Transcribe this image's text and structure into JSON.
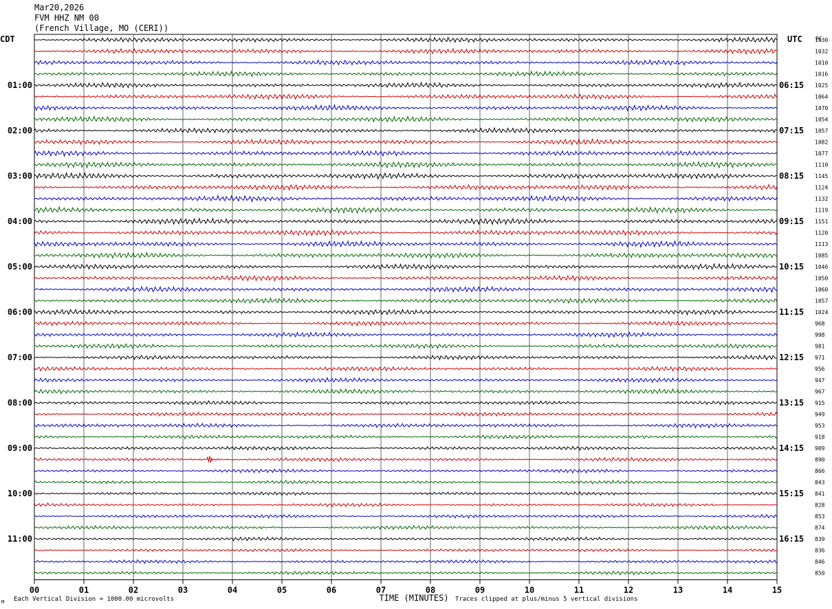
{
  "header": {
    "date": "Mar20,2026",
    "station": "FVM HHZ NM 00",
    "location": "(French Village, MO (CERI))"
  },
  "labels": {
    "left_tz": "CDT",
    "right_tz": "UTC",
    "pc_label": "PC"
  },
  "footer": {
    "scale": "Each Vertical Division = 1000.00 microvolts",
    "clip": "Traces clipped at plus/minus 5 vertical divisions",
    "corner_mark": "M"
  },
  "chart_data": {
    "type": "line",
    "title": "",
    "xlabel": "TIME (MINUTES)",
    "ylabel": "",
    "xlim": [
      0,
      15
    ],
    "x_ticks": [
      "00",
      "01",
      "02",
      "03",
      "04",
      "05",
      "06",
      "07",
      "08",
      "09",
      "10",
      "11",
      "12",
      "13",
      "14",
      "15"
    ],
    "grid": true,
    "trace_colors": [
      "#000000",
      "#cc0000",
      "#0000cc",
      "#006600"
    ],
    "left_hour_labels": [
      "01:00",
      "02:00",
      "03:00",
      "04:00",
      "05:00",
      "06:00",
      "07:00",
      "08:00",
      "09:00",
      "10:00",
      "11:00"
    ],
    "right_hour_labels": [
      "06:15",
      "07:15",
      "08:15",
      "09:15",
      "10:15",
      "11:15",
      "12:15",
      "13:15",
      "14:15",
      "15:15",
      "16:15"
    ],
    "trace_values": [
      1030,
      1032,
      1010,
      1016,
      1025,
      1064,
      1070,
      1054,
      1057,
      1082,
      1077,
      1110,
      1145,
      1124,
      1132,
      1119,
      1151,
      1120,
      1113,
      1085,
      1046,
      1050,
      1060,
      1057,
      1024,
      968,
      998,
      981,
      971,
      956,
      947,
      967,
      915,
      949,
      953,
      918,
      909,
      890,
      866,
      843,
      841,
      828,
      853,
      874,
      839,
      836,
      846,
      850
    ],
    "event": {
      "trace_index": 37,
      "minute": 3.55
    }
  }
}
